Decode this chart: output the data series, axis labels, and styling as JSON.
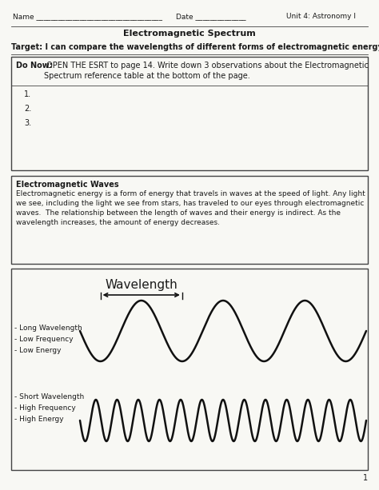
{
  "title": "Electromagnetic Spectrum",
  "header_name": "Name ___________________________________",
  "header_date": "Date ______________",
  "header_unit": "Unit 4: Astronomy I",
  "target_text": "Target: I can compare the wavelengths of different forms of electromagnetic energy.",
  "do_now_bold": "Do Now:",
  "do_now_text": " OPEN THE ESRT to page 14. Write down 3 observations about the Electromagnetic\nSpectrum reference table at the bottom of the page.",
  "numbered_items": [
    "1.",
    "2.",
    "3."
  ],
  "em_waves_title": "Electromagnetic Waves",
  "em_waves_body": "Electromagnetic energy is a form of energy that travels in waves at the speed of light. Any light\nwe see, including the light we see from stars, has traveled to our eyes through electromagnetic\nwaves.  The relationship between the length of waves and their energy is indirect. As the\nwavelength increases, the amount of energy decreases.",
  "wavelength_label": "Wavelength",
  "long_wave_label": "- Long Wavelength\n- Low Frequency\n- Low Energy",
  "short_wave_label": "- Short Wavelength\n- High Frequency\n- High Energy",
  "page_number": "1",
  "bg_color": "#f8f8f4",
  "text_color": "#1a1a1a",
  "border_color": "#444444",
  "wave_color": "#111111",
  "long_wave_freq": 3.5,
  "short_wave_freq": 13.5,
  "long_wave_amp": 38,
  "short_wave_amp": 26
}
